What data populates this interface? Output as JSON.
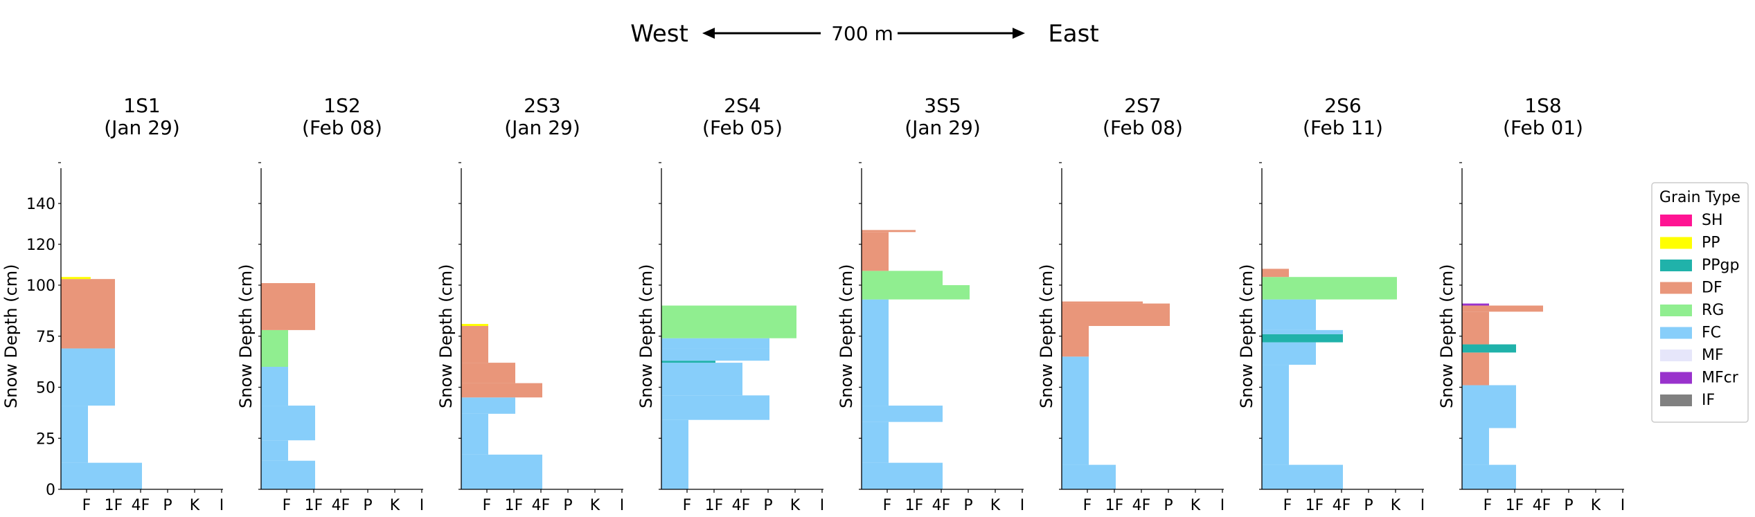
{
  "header": {
    "west": "West",
    "east": "East",
    "distance": "700 m"
  },
  "legend": {
    "title": "Grain Type",
    "items": [
      {
        "label": "SH",
        "color": "#ff1493"
      },
      {
        "label": "PP",
        "color": "#ffff00"
      },
      {
        "label": "PPgp",
        "color": "#20b2aa"
      },
      {
        "label": "DF",
        "color": "#e9967a"
      },
      {
        "label": "RG",
        "color": "#90ee90"
      },
      {
        "label": "FC",
        "color": "#87cefa"
      },
      {
        "label": "MF",
        "color": "#e6e6fa"
      },
      {
        "label": "MFcr",
        "color": "#9932cc"
      },
      {
        "label": "IF",
        "color": "#808080"
      }
    ]
  },
  "chart_data": {
    "type": "bar",
    "orientation": "horizontal-stepped",
    "ylabel": "Snow Depth (cm)",
    "hardness_categories": [
      "F",
      "1F",
      "4F",
      "P",
      "K",
      "I"
    ],
    "y_ticks": [
      0,
      25,
      50,
      75,
      100,
      120,
      140
    ],
    "ylim": [
      0,
      160
    ],
    "xlim": [
      0,
      6
    ],
    "legend_position": "right",
    "panels": [
      {
        "name": "1S1",
        "date": "(Jan 29)",
        "layers": [
          {
            "bottom": 0,
            "top": 13,
            "hardness": 3,
            "grain": "FC"
          },
          {
            "bottom": 13,
            "top": 41,
            "hardness": 1,
            "grain": "FC"
          },
          {
            "bottom": 41,
            "top": 69,
            "hardness": 2,
            "grain": "FC"
          },
          {
            "bottom": 69,
            "top": 103,
            "hardness": 2,
            "grain": "DF"
          },
          {
            "bottom": 103,
            "top": 104,
            "hardness": 1.1,
            "grain": "PP"
          }
        ]
      },
      {
        "name": "1S2",
        "date": "(Feb 08)",
        "layers": [
          {
            "bottom": 0,
            "top": 14,
            "hardness": 2,
            "grain": "FC"
          },
          {
            "bottom": 14,
            "top": 24,
            "hardness": 1,
            "grain": "FC"
          },
          {
            "bottom": 24,
            "top": 41,
            "hardness": 2,
            "grain": "FC"
          },
          {
            "bottom": 41,
            "top": 60,
            "hardness": 1,
            "grain": "FC"
          },
          {
            "bottom": 60,
            "top": 78,
            "hardness": 1,
            "grain": "RG"
          },
          {
            "bottom": 78,
            "top": 101,
            "hardness": 2,
            "grain": "DF"
          }
        ]
      },
      {
        "name": "2S3",
        "date": "(Jan 29)",
        "layers": [
          {
            "bottom": 0,
            "top": 17,
            "hardness": 3,
            "grain": "FC"
          },
          {
            "bottom": 17,
            "top": 37,
            "hardness": 1,
            "grain": "FC"
          },
          {
            "bottom": 37,
            "top": 45,
            "hardness": 2,
            "grain": "FC"
          },
          {
            "bottom": 45,
            "top": 52,
            "hardness": 3,
            "grain": "DF"
          },
          {
            "bottom": 52,
            "top": 62,
            "hardness": 2,
            "grain": "DF"
          },
          {
            "bottom": 62,
            "top": 80,
            "hardness": 1,
            "grain": "DF"
          },
          {
            "bottom": 80,
            "top": 81,
            "hardness": 1,
            "grain": "PP"
          }
        ]
      },
      {
        "name": "2S4",
        "date": "(Feb 05)",
        "layers": [
          {
            "bottom": 0,
            "top": 34,
            "hardness": 1,
            "grain": "FC"
          },
          {
            "bottom": 34,
            "top": 46,
            "hardness": 4,
            "grain": "FC"
          },
          {
            "bottom": 46,
            "top": 62,
            "hardness": 3,
            "grain": "FC"
          },
          {
            "bottom": 62,
            "top": 63,
            "hardness": 2,
            "grain": "PPgp"
          },
          {
            "bottom": 63,
            "top": 69,
            "hardness": 4,
            "grain": "FC"
          },
          {
            "bottom": 69,
            "top": 74,
            "hardness": 4,
            "grain": "FC"
          },
          {
            "bottom": 74,
            "top": 90,
            "hardness": 5,
            "grain": "RG"
          }
        ]
      },
      {
        "name": "3S5",
        "date": "(Jan 29)",
        "layers": [
          {
            "bottom": 0,
            "top": 13,
            "hardness": 3,
            "grain": "FC"
          },
          {
            "bottom": 13,
            "top": 33,
            "hardness": 1,
            "grain": "FC"
          },
          {
            "bottom": 33,
            "top": 41,
            "hardness": 3,
            "grain": "FC"
          },
          {
            "bottom": 41,
            "top": 93,
            "hardness": 1,
            "grain": "FC"
          },
          {
            "bottom": 93,
            "top": 100,
            "hardness": 4,
            "grain": "RG"
          },
          {
            "bottom": 100,
            "top": 107,
            "hardness": 3,
            "grain": "RG"
          },
          {
            "bottom": 107,
            "top": 126,
            "hardness": 1,
            "grain": "DF"
          },
          {
            "bottom": 126,
            "top": 127,
            "hardness": 2,
            "grain": "DF"
          }
        ]
      },
      {
        "name": "2S7",
        "date": "(Feb 08)",
        "layers": [
          {
            "bottom": 0,
            "top": 12,
            "hardness": 2,
            "grain": "FC"
          },
          {
            "bottom": 12,
            "top": 65,
            "hardness": 1,
            "grain": "FC"
          },
          {
            "bottom": 65,
            "top": 80,
            "hardness": 1,
            "grain": "DF"
          },
          {
            "bottom": 80,
            "top": 91,
            "hardness": 4,
            "grain": "DF"
          },
          {
            "bottom": 91,
            "top": 92,
            "hardness": 3,
            "grain": "DF"
          }
        ]
      },
      {
        "name": "2S6",
        "date": "(Feb 11)",
        "layers": [
          {
            "bottom": 0,
            "top": 12,
            "hardness": 3,
            "grain": "FC"
          },
          {
            "bottom": 12,
            "top": 61,
            "hardness": 1,
            "grain": "FC"
          },
          {
            "bottom": 61,
            "top": 72,
            "hardness": 2,
            "grain": "FC"
          },
          {
            "bottom": 72,
            "top": 76,
            "hardness": 3,
            "grain": "PPgp"
          },
          {
            "bottom": 76,
            "top": 78,
            "hardness": 3,
            "grain": "FC"
          },
          {
            "bottom": 78,
            "top": 93,
            "hardness": 2,
            "grain": "FC"
          },
          {
            "bottom": 93,
            "top": 104,
            "hardness": 5,
            "grain": "RG"
          },
          {
            "bottom": 104,
            "top": 108,
            "hardness": 1,
            "grain": "DF"
          }
        ]
      },
      {
        "name": "1S8",
        "date": "(Feb 01)",
        "layers": [
          {
            "bottom": 0,
            "top": 12,
            "hardness": 2,
            "grain": "FC"
          },
          {
            "bottom": 12,
            "top": 30,
            "hardness": 1,
            "grain": "FC"
          },
          {
            "bottom": 30,
            "top": 51,
            "hardness": 2,
            "grain": "FC"
          },
          {
            "bottom": 51,
            "top": 67,
            "hardness": 1,
            "grain": "DF"
          },
          {
            "bottom": 67,
            "top": 71,
            "hardness": 2,
            "grain": "PPgp"
          },
          {
            "bottom": 71,
            "top": 87,
            "hardness": 1,
            "grain": "DF"
          },
          {
            "bottom": 87,
            "top": 90,
            "hardness": 3,
            "grain": "DF"
          },
          {
            "bottom": 90,
            "top": 91,
            "hardness": 1,
            "grain": "MFcr"
          }
        ]
      }
    ]
  }
}
